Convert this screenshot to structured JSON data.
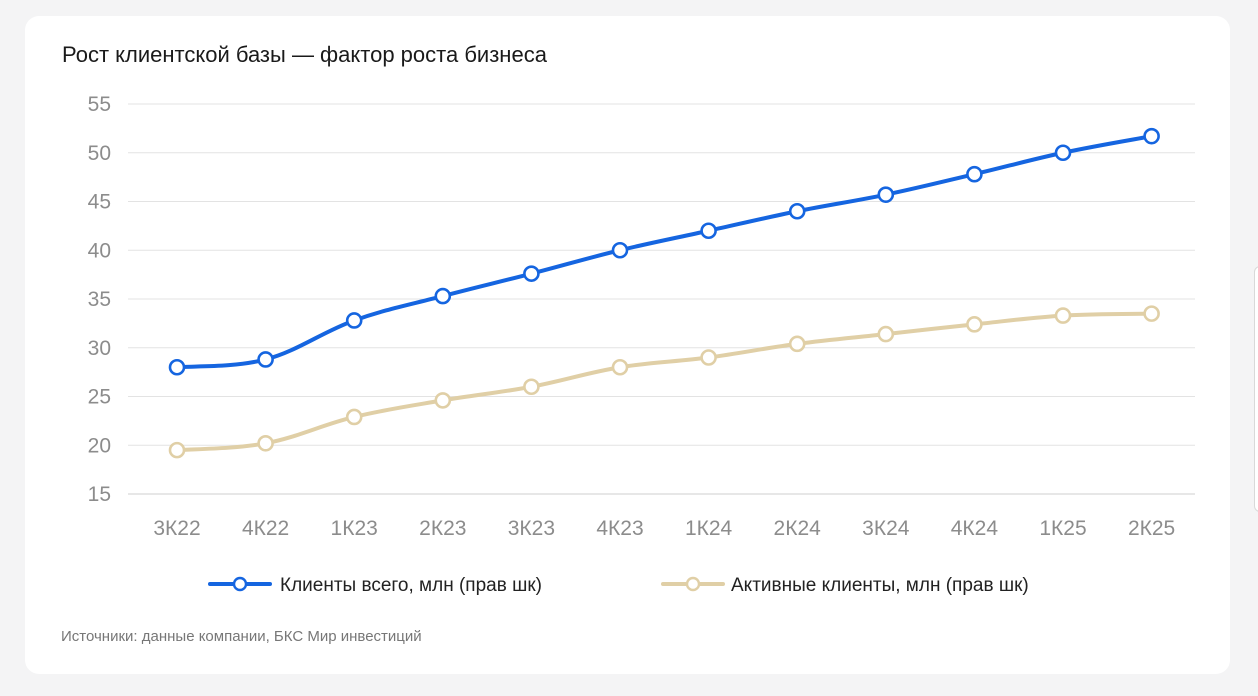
{
  "chart_data": {
    "type": "line",
    "title": "Рост клиентской базы — фактор роста бизнеса",
    "categories": [
      "3К22",
      "4К22",
      "1К23",
      "2К23",
      "3К23",
      "4К23",
      "1К24",
      "2К24",
      "3К24",
      "4К24",
      "1К25",
      "2К25"
    ],
    "ylim": [
      15,
      55
    ],
    "yticks": [
      15,
      20,
      25,
      30,
      35,
      40,
      45,
      50,
      55
    ],
    "grid": true,
    "legend_position": "bottom",
    "series": [
      {
        "name": "Клиенты всего, млн (прав шк)",
        "color": "#1565e0",
        "values": [
          28.0,
          28.8,
          32.8,
          35.3,
          37.6,
          40.0,
          42.0,
          44.0,
          45.7,
          47.8,
          50.0,
          51.7
        ]
      },
      {
        "name": "Активные клиенты, млн (прав шк)",
        "color": "#e0cfa6",
        "values": [
          19.5,
          20.2,
          22.9,
          24.6,
          26.0,
          28.0,
          29.0,
          30.4,
          31.4,
          32.4,
          33.3,
          33.5
        ]
      }
    ]
  },
  "source": "Источники: данные компании, БКС Мир инвестиций"
}
